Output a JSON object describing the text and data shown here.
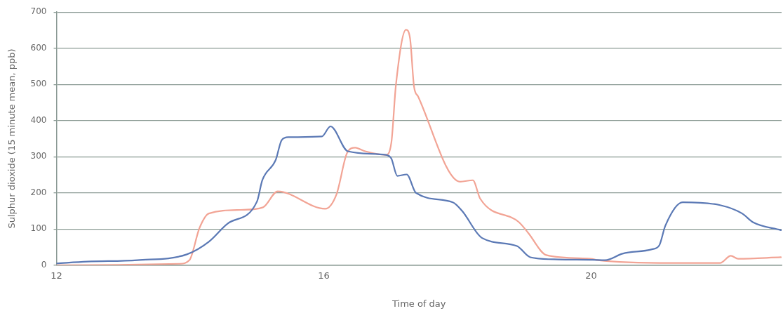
{
  "chart_data": {
    "type": "line",
    "xlabel": "Time of day",
    "ylabel": "Sulphur dioxide (15 minute mean, ppb)",
    "xlim": [
      12,
      22.85
    ],
    "xticks": [
      12,
      16,
      20
    ],
    "ylim": [
      0,
      700
    ],
    "yticks": [
      0,
      100,
      200,
      300,
      400,
      500,
      600,
      700
    ],
    "grid": "y",
    "marker": "none",
    "line_style": "solid",
    "series": [
      {
        "color": "#5b79b5",
        "x": [
          12.0,
          12.46,
          13.21,
          13.95,
          14.28,
          14.56,
          15.0,
          15.08,
          15.28,
          15.37,
          15.47,
          15.97,
          16.1,
          16.36,
          16.93,
          17.01,
          17.1,
          17.24,
          17.38,
          17.93,
          18.07,
          18.37,
          18.89,
          19.09,
          19.51,
          20.02,
          20.21,
          20.47,
          20.91,
          21.02,
          21.11,
          21.37,
          21.93,
          22.26,
          22.42,
          22.84
        ],
        "values": [
          5,
          10,
          14,
          30,
          65,
          115,
          176,
          235,
          291,
          346,
          354,
          356,
          384,
          315,
          305,
          295,
          247,
          251,
          200,
          174,
          150,
          75,
          53,
          22,
          16,
          15,
          14,
          32,
          44,
          55,
          109,
          174,
          166,
          143,
          119,
          97
        ]
      },
      {
        "color": "#f2a495",
        "x": [
          12.0,
          13.84,
          13.99,
          14.14,
          14.28,
          14.76,
          15.09,
          15.31,
          16.02,
          16.19,
          16.35,
          16.47,
          16.62,
          16.93,
          17.01,
          17.08,
          17.23,
          17.29,
          17.35,
          17.41,
          18.04,
          18.23,
          18.34,
          18.92,
          19.06,
          19.33,
          19.99,
          20.1,
          21.2,
          21.93,
          22.09,
          22.2,
          22.84
        ],
        "values": [
          0,
          4,
          14,
          103,
          143,
          153,
          160,
          204,
          156,
          196,
          311,
          325,
          315,
          305,
          338,
          500,
          651,
          628,
          494,
          467,
          231,
          235,
          184,
          119,
          89,
          28,
          18,
          14,
          6,
          6,
          26,
          18,
          22
        ]
      }
    ]
  }
}
